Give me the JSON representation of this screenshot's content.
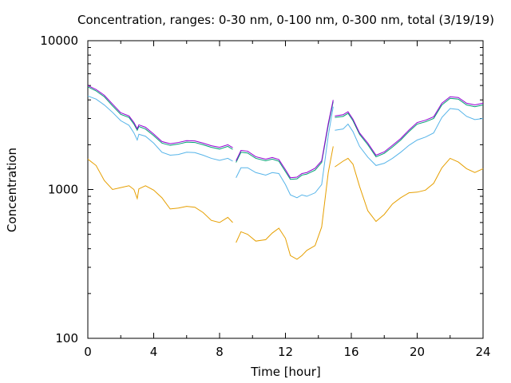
{
  "chart_data": {
    "type": "line",
    "title": "Concentration, ranges: 0-30 nm, 0-100 nm, 0-300 nm, total (3/19/19)",
    "xlabel": "Time [hour]",
    "ylabel": "Concentration",
    "xlim": [
      0,
      24
    ],
    "ylim": [
      100,
      10000
    ],
    "yscale": "log",
    "grid": false,
    "x_ticks": [
      "0",
      "4",
      "8",
      "12",
      "16",
      "20",
      "24"
    ],
    "y_ticks": [
      "100",
      "1000",
      "10000"
    ],
    "series": [
      {
        "color": "#e69f00",
        "segments": [
          [
            [
              0,
              1600
            ],
            [
              0.5,
              1450
            ],
            [
              1,
              1150
            ],
            [
              1.5,
              1000
            ],
            [
              2,
              1030
            ],
            [
              2.5,
              1060
            ],
            [
              2.8,
              1000
            ],
            [
              3.0,
              870
            ],
            [
              3.1,
              1010
            ],
            [
              3.5,
              1060
            ],
            [
              4,
              990
            ],
            [
              4.5,
              880
            ],
            [
              5,
              740
            ],
            [
              5.5,
              750
            ],
            [
              6,
              770
            ],
            [
              6.5,
              760
            ],
            [
              7,
              700
            ],
            [
              7.5,
              620
            ],
            [
              8,
              600
            ],
            [
              8.5,
              650
            ],
            [
              8.8,
              600
            ]
          ],
          [
            [
              9.0,
              440
            ],
            [
              9.3,
              520
            ],
            [
              9.7,
              500
            ],
            [
              10.2,
              450
            ],
            [
              10.8,
              460
            ],
            [
              11.2,
              510
            ],
            [
              11.6,
              550
            ],
            [
              12,
              470
            ],
            [
              12.3,
              360
            ],
            [
              12.7,
              340
            ],
            [
              13.0,
              360
            ],
            [
              13.3,
              390
            ],
            [
              13.8,
              420
            ],
            [
              14.2,
              560
            ],
            [
              14.6,
              1300
            ],
            [
              14.9,
              1950
            ]
          ],
          [
            [
              15.0,
              1420
            ],
            [
              15.5,
              1550
            ],
            [
              15.8,
              1620
            ],
            [
              16.1,
              1480
            ],
            [
              16.5,
              1050
            ],
            [
              17.0,
              720
            ],
            [
              17.5,
              610
            ],
            [
              18.0,
              680
            ],
            [
              18.5,
              800
            ],
            [
              19.0,
              880
            ],
            [
              19.5,
              950
            ],
            [
              20.0,
              960
            ],
            [
              20.5,
              990
            ],
            [
              21.0,
              1100
            ],
            [
              21.5,
              1400
            ],
            [
              22.0,
              1620
            ],
            [
              22.5,
              1530
            ],
            [
              23.0,
              1380
            ],
            [
              23.5,
              1300
            ],
            [
              24.0,
              1380
            ]
          ]
        ]
      },
      {
        "color": "#56b4e9",
        "segments": [
          [
            [
              0,
              4250
            ],
            [
              0.5,
              4050
            ],
            [
              1,
              3700
            ],
            [
              1.5,
              3300
            ],
            [
              2,
              2900
            ],
            [
              2.5,
              2700
            ],
            [
              2.8,
              2400
            ],
            [
              3.0,
              2150
            ],
            [
              3.1,
              2350
            ],
            [
              3.5,
              2280
            ],
            [
              4,
              2050
            ],
            [
              4.5,
              1780
            ],
            [
              5,
              1700
            ],
            [
              5.5,
              1720
            ],
            [
              6,
              1780
            ],
            [
              6.5,
              1770
            ],
            [
              7,
              1700
            ],
            [
              7.5,
              1620
            ],
            [
              8,
              1570
            ],
            [
              8.5,
              1620
            ],
            [
              8.8,
              1550
            ]
          ],
          [
            [
              9.0,
              1200
            ],
            [
              9.3,
              1400
            ],
            [
              9.7,
              1400
            ],
            [
              10.2,
              1300
            ],
            [
              10.8,
              1250
            ],
            [
              11.2,
              1300
            ],
            [
              11.6,
              1280
            ],
            [
              12,
              1080
            ],
            [
              12.3,
              920
            ],
            [
              12.7,
              880
            ],
            [
              13.0,
              920
            ],
            [
              13.3,
              900
            ],
            [
              13.8,
              950
            ],
            [
              14.2,
              1080
            ],
            [
              14.6,
              2300
            ],
            [
              14.9,
              3600
            ]
          ],
          [
            [
              15.0,
              2500
            ],
            [
              15.5,
              2550
            ],
            [
              15.8,
              2750
            ],
            [
              16.1,
              2450
            ],
            [
              16.5,
              1950
            ],
            [
              17.0,
              1650
            ],
            [
              17.5,
              1450
            ],
            [
              18.0,
              1500
            ],
            [
              18.5,
              1620
            ],
            [
              19.0,
              1780
            ],
            [
              19.5,
              1980
            ],
            [
              20.0,
              2150
            ],
            [
              20.5,
              2250
            ],
            [
              21.0,
              2400
            ],
            [
              21.5,
              3050
            ],
            [
              22.0,
              3500
            ],
            [
              22.5,
              3450
            ],
            [
              23.0,
              3100
            ],
            [
              23.5,
              2950
            ],
            [
              24.0,
              3000
            ]
          ]
        ]
      },
      {
        "color": "#009e73",
        "segments": [
          [
            [
              0,
              4900
            ],
            [
              0.5,
              4600
            ],
            [
              1,
              4200
            ],
            [
              1.5,
              3650
            ],
            [
              2,
              3200
            ],
            [
              2.5,
              3050
            ],
            [
              2.8,
              2750
            ],
            [
              3.0,
              2500
            ],
            [
              3.1,
              2650
            ],
            [
              3.5,
              2550
            ],
            [
              4,
              2300
            ],
            [
              4.5,
              2050
            ],
            [
              5,
              1980
            ],
            [
              5.5,
              2020
            ],
            [
              6,
              2080
            ],
            [
              6.5,
              2070
            ],
            [
              7,
              2000
            ],
            [
              7.5,
              1920
            ],
            [
              8,
              1870
            ],
            [
              8.5,
              1950
            ],
            [
              8.8,
              1860
            ]
          ],
          [
            [
              9.0,
              1520
            ],
            [
              9.3,
              1780
            ],
            [
              9.7,
              1760
            ],
            [
              10.2,
              1620
            ],
            [
              10.8,
              1560
            ],
            [
              11.2,
              1600
            ],
            [
              11.6,
              1550
            ],
            [
              12,
              1320
            ],
            [
              12.3,
              1170
            ],
            [
              12.7,
              1180
            ],
            [
              13.0,
              1250
            ],
            [
              13.3,
              1270
            ],
            [
              13.8,
              1350
            ],
            [
              14.2,
              1520
            ],
            [
              14.6,
              2700
            ],
            [
              14.9,
              3900
            ]
          ],
          [
            [
              15.0,
              3050
            ],
            [
              15.5,
              3100
            ],
            [
              15.8,
              3250
            ],
            [
              16.1,
              2900
            ],
            [
              16.5,
              2350
            ],
            [
              17.0,
              2000
            ],
            [
              17.5,
              1660
            ],
            [
              18.0,
              1750
            ],
            [
              18.5,
              1930
            ],
            [
              19.0,
              2150
            ],
            [
              19.5,
              2450
            ],
            [
              20.0,
              2750
            ],
            [
              20.5,
              2850
            ],
            [
              21.0,
              3000
            ],
            [
              21.5,
              3700
            ],
            [
              22.0,
              4100
            ],
            [
              22.5,
              4050
            ],
            [
              23.0,
              3700
            ],
            [
              23.5,
              3600
            ],
            [
              24.0,
              3700
            ]
          ]
        ]
      },
      {
        "color": "#9400d3",
        "segments": [
          [
            [
              0,
              5000
            ],
            [
              0.5,
              4700
            ],
            [
              1,
              4300
            ],
            [
              1.5,
              3750
            ],
            [
              2,
              3280
            ],
            [
              2.5,
              3120
            ],
            [
              2.8,
              2820
            ],
            [
              3.0,
              2560
            ],
            [
              3.1,
              2720
            ],
            [
              3.5,
              2620
            ],
            [
              4,
              2360
            ],
            [
              4.5,
              2100
            ],
            [
              5,
              2030
            ],
            [
              5.5,
              2070
            ],
            [
              6,
              2130
            ],
            [
              6.5,
              2120
            ],
            [
              7,
              2050
            ],
            [
              7.5,
              1970
            ],
            [
              8,
              1920
            ],
            [
              8.5,
              2000
            ],
            [
              8.8,
              1910
            ]
          ],
          [
            [
              9.0,
              1560
            ],
            [
              9.3,
              1830
            ],
            [
              9.7,
              1810
            ],
            [
              10.2,
              1660
            ],
            [
              10.8,
              1600
            ],
            [
              11.2,
              1640
            ],
            [
              11.6,
              1590
            ],
            [
              12,
              1360
            ],
            [
              12.3,
              1200
            ],
            [
              12.7,
              1210
            ],
            [
              13.0,
              1280
            ],
            [
              13.3,
              1300
            ],
            [
              13.8,
              1390
            ],
            [
              14.2,
              1560
            ],
            [
              14.6,
              2780
            ],
            [
              14.9,
              4000
            ]
          ],
          [
            [
              15.0,
              3120
            ],
            [
              15.5,
              3180
            ],
            [
              15.8,
              3330
            ],
            [
              16.1,
              2970
            ],
            [
              16.5,
              2400
            ],
            [
              17.0,
              2050
            ],
            [
              17.5,
              1700
            ],
            [
              18.0,
              1790
            ],
            [
              18.5,
              1980
            ],
            [
              19.0,
              2200
            ],
            [
              19.5,
              2510
            ],
            [
              20.0,
              2820
            ],
            [
              20.5,
              2920
            ],
            [
              21.0,
              3080
            ],
            [
              21.5,
              3800
            ],
            [
              22.0,
              4200
            ],
            [
              22.5,
              4150
            ],
            [
              23.0,
              3800
            ],
            [
              23.5,
              3700
            ],
            [
              24.0,
              3800
            ]
          ]
        ]
      }
    ]
  }
}
